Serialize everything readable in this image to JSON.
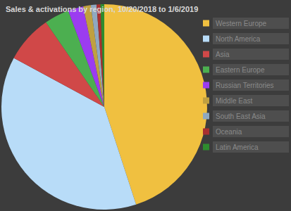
{
  "chart_data": {
    "type": "pie",
    "title": "Sales & activations by region, 10/20/2018 to 1/6/2019",
    "categories": [
      "Western Europe",
      "North America",
      "Asia",
      "Eastern Europe",
      "Russian Territories",
      "Middle East",
      "South East Asia",
      "Oceania",
      "Latin America"
    ],
    "values": [
      45,
      37.9,
      7.5,
      3.9,
      2.4,
      1.2,
      0.9,
      0.6,
      0.6
    ],
    "colors": [
      "#f0c040",
      "#b8dcf8",
      "#d04848",
      "#4caf50",
      "#9b3cf0",
      "#c0a040",
      "#8fa8c0",
      "#a83030",
      "#2e8b2e"
    ],
    "legend": "right"
  }
}
